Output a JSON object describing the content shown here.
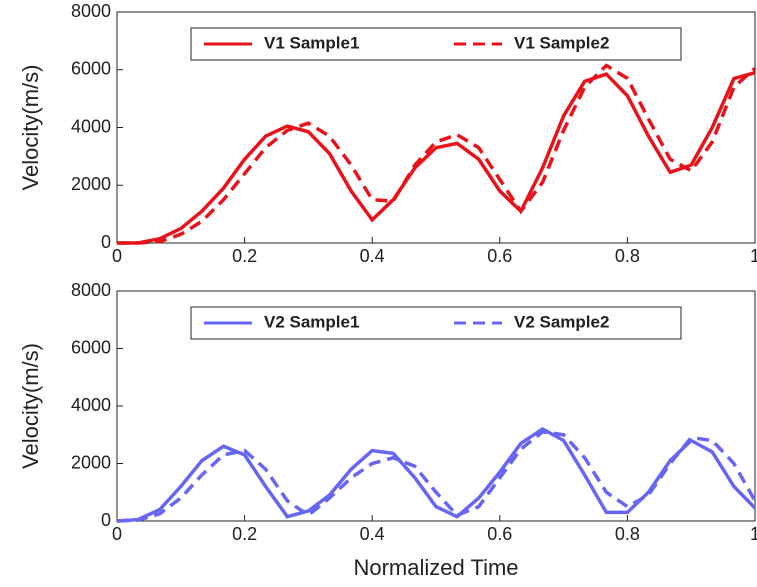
{
  "chart_data": [
    {
      "type": "line",
      "ylabel": "Velocity(m/s)",
      "x": [
        0,
        0.033,
        0.067,
        0.1,
        0.133,
        0.167,
        0.2,
        0.233,
        0.267,
        0.3,
        0.333,
        0.367,
        0.4,
        0.433,
        0.467,
        0.5,
        0.533,
        0.567,
        0.6,
        0.633,
        0.667,
        0.7,
        0.733,
        0.767,
        0.8,
        0.833,
        0.867,
        0.9,
        0.933,
        0.967,
        1
      ],
      "series": [
        {
          "name": "V1 Sample1",
          "color": "#e8121a",
          "dash": false,
          "values": [
            0,
            0,
            150,
            500,
            1100,
            1900,
            2900,
            3700,
            4050,
            3850,
            3100,
            1800,
            800,
            1500,
            2600,
            3300,
            3450,
            2900,
            1800,
            1100,
            2600,
            4400,
            5600,
            5850,
            5100,
            3700,
            2450,
            2700,
            4000,
            5700,
            5900
          ]
        },
        {
          "name": "V1 Sample2",
          "color": "#e8121a",
          "dash": true,
          "values": [
            0,
            0,
            50,
            300,
            750,
            1500,
            2400,
            3300,
            3900,
            4150,
            3700,
            2700,
            1500,
            1450,
            2700,
            3500,
            3750,
            3300,
            2200,
            1100,
            2100,
            3900,
            5400,
            6150,
            5700,
            4300,
            2900,
            2500,
            3500,
            5400,
            6050
          ]
        }
      ],
      "xlim": [
        0,
        1
      ],
      "xticks": [
        0,
        0.2,
        0.4,
        0.6,
        0.8,
        1
      ],
      "ylim": [
        0,
        8000
      ],
      "yticks": [
        0,
        2000,
        4000,
        6000,
        8000
      ],
      "legend": "top"
    },
    {
      "type": "line",
      "ylabel": "Velocity(m/s)",
      "xlabel": "Normalized Time",
      "x": [
        0,
        0.033,
        0.067,
        0.1,
        0.133,
        0.167,
        0.2,
        0.233,
        0.267,
        0.3,
        0.333,
        0.367,
        0.4,
        0.433,
        0.467,
        0.5,
        0.533,
        0.567,
        0.6,
        0.633,
        0.667,
        0.7,
        0.733,
        0.767,
        0.8,
        0.833,
        0.867,
        0.9,
        0.933,
        0.967,
        1
      ],
      "series": [
        {
          "name": "V2 Sample1",
          "color": "#6666f2",
          "dash": false,
          "values": [
            0,
            50,
            400,
            1200,
            2100,
            2600,
            2300,
            1200,
            150,
            350,
            900,
            1800,
            2450,
            2350,
            1500,
            500,
            150,
            800,
            1700,
            2700,
            3200,
            2800,
            1600,
            300,
            300,
            1000,
            2100,
            2800,
            2400,
            1200,
            450
          ]
        },
        {
          "name": "V2 Sample2",
          "color": "#6666f2",
          "dash": true,
          "values": [
            0,
            30,
            250,
            800,
            1600,
            2300,
            2450,
            1800,
            700,
            200,
            800,
            1500,
            2000,
            2200,
            1900,
            1000,
            200,
            500,
            1500,
            2500,
            3100,
            3000,
            2200,
            1000,
            500,
            900,
            2000,
            2900,
            2800,
            2000,
            700
          ]
        }
      ],
      "xlim": [
        0,
        1
      ],
      "xticks": [
        0,
        0.2,
        0.4,
        0.6,
        0.8,
        1
      ],
      "ylim": [
        0,
        8000
      ],
      "yticks": [
        0,
        2000,
        4000,
        6000,
        8000
      ],
      "legend": "top"
    }
  ]
}
